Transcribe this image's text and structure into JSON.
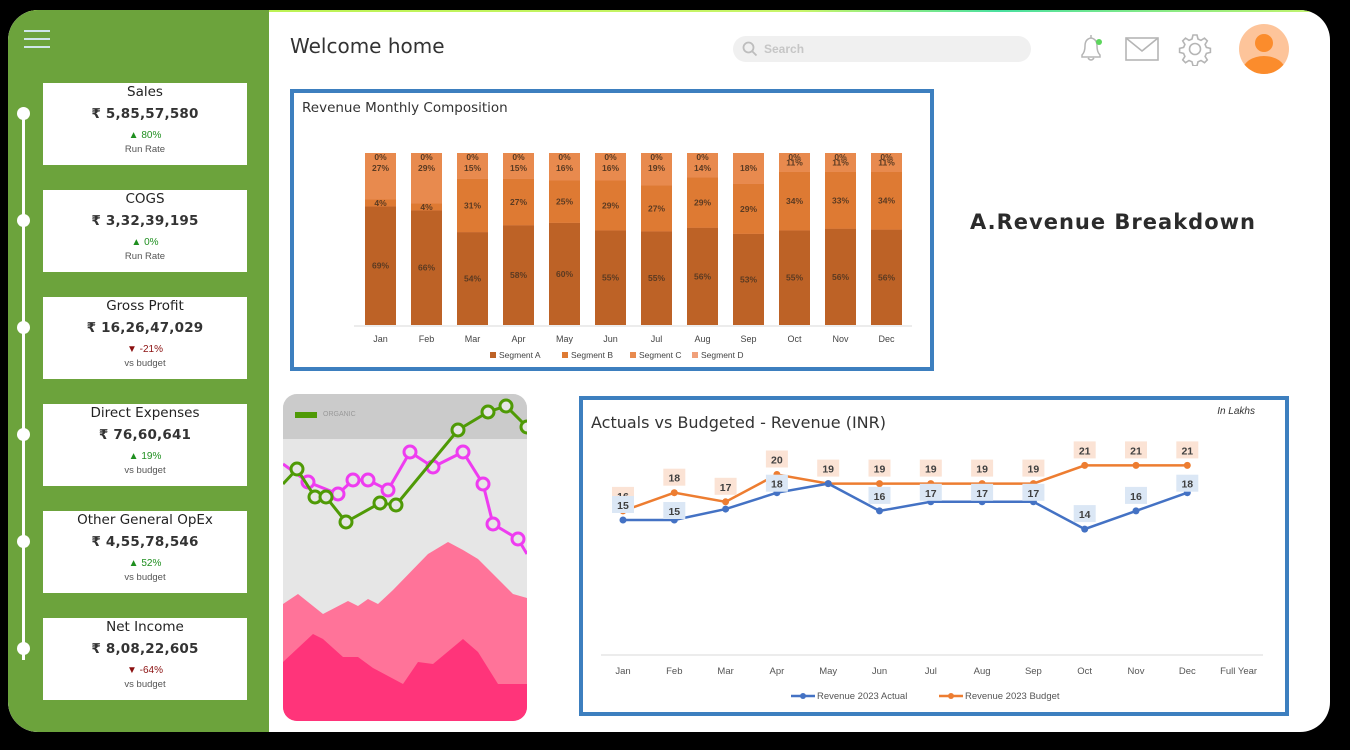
{
  "header": {
    "title": "Welcome home",
    "search_placeholder": "Search",
    "icons": [
      "menu-icon",
      "bell-icon",
      "mail-icon",
      "gear-icon",
      "avatar-icon"
    ]
  },
  "sidebar": {
    "kpis": [
      {
        "title": "Sales",
        "value": "₹ 5,85,57,580",
        "delta": "▲ 80%",
        "direction": "up",
        "sub": "Run Rate"
      },
      {
        "title": "COGS",
        "value": "₹ 3,32,39,195",
        "delta": "▲ 0%",
        "direction": "up",
        "sub": "Run Rate"
      },
      {
        "title": "Gross Profit",
        "value": "₹ 16,26,47,029",
        "delta": "▼ -21%",
        "direction": "down",
        "sub": "vs budget"
      },
      {
        "title": "Direct Expenses",
        "value": "₹ 76,60,641",
        "delta": "▲ 19%",
        "direction": "up",
        "sub": "vs budget"
      },
      {
        "title": "Other General OpEx",
        "value": "₹ 4,55,78,546",
        "delta": "▲ 52%",
        "direction": "up",
        "sub": "vs budget"
      },
      {
        "title": "Net Income",
        "value": "₹ 8,08,22,605",
        "delta": "▼ -64%",
        "direction": "down",
        "sub": "vs budget"
      }
    ]
  },
  "section_heading": "A.Revenue Breakdown",
  "decorative_chart": {
    "legend_label": "ORGANIC"
  },
  "colors": {
    "sidebar_green": "#6ca33c",
    "panel_border": "#3d7fbf",
    "segA": "#bd6226",
    "segB": "#de7a33",
    "segC": "#e88a4e",
    "segD": "#f0a07a",
    "actual": "#4472c4",
    "budget": "#ed7d31"
  },
  "chart_data": [
    {
      "type": "bar",
      "stacked": true,
      "title": "Revenue Monthly Composition",
      "categories": [
        "Jan",
        "Feb",
        "Mar",
        "Apr",
        "May",
        "Jun",
        "Jul",
        "Aug",
        "Sep",
        "Oct",
        "Nov",
        "Dec"
      ],
      "series": [
        {
          "name": "Segment A",
          "values": [
            69,
            66,
            54,
            58,
            60,
            55,
            55,
            56,
            53,
            55,
            56,
            56
          ]
        },
        {
          "name": "Segment B",
          "values": [
            4,
            4,
            31,
            27,
            25,
            29,
            27,
            29,
            29,
            34,
            33,
            34
          ]
        },
        {
          "name": "Segment C",
          "values": [
            27,
            29,
            15,
            15,
            16,
            16,
            19,
            14,
            18,
            11,
            11,
            11
          ]
        },
        {
          "name": "Segment D",
          "values": [
            0,
            0,
            0,
            0,
            0,
            0,
            0,
            0,
            null,
            0,
            0,
            0
          ]
        }
      ],
      "legend_position": "bottom",
      "ylim": [
        0,
        100
      ]
    },
    {
      "type": "line",
      "title": "Actuals vs Budgeted - Revenue (INR)",
      "unit_note": "In Lakhs",
      "categories": [
        "Jan",
        "Feb",
        "Mar",
        "Apr",
        "May",
        "Jun",
        "Jul",
        "Aug",
        "Sep",
        "Oct",
        "Nov",
        "Dec",
        "Full Year"
      ],
      "series": [
        {
          "name": "Revenue 2023 Actual",
          "values": [
            15,
            15,
            null,
            18,
            19,
            16,
            17,
            17,
            17,
            14,
            16,
            18,
            null
          ],
          "labels": [
            "15",
            "15",
            "",
            "18",
            "",
            "16",
            "17",
            "17",
            "17",
            "14",
            "16",
            "18",
            ""
          ]
        },
        {
          "name": "Revenue 2023 Budget",
          "values": [
            16,
            18,
            17,
            20,
            19,
            19,
            19,
            19,
            19,
            21,
            21,
            21,
            null
          ],
          "labels": [
            "16",
            "18",
            "17",
            "20",
            "19",
            "19",
            "19",
            "19",
            "19",
            "21",
            "21",
            "21",
            ""
          ]
        }
      ],
      "legend_position": "bottom",
      "grid": false
    }
  ]
}
